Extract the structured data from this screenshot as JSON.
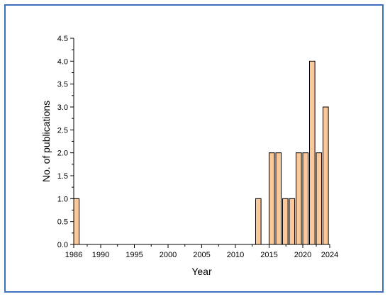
{
  "chart_data": {
    "type": "bar",
    "xlabel": "Year",
    "ylabel": "No. of publications",
    "xlim": [
      1986,
      2024
    ],
    "ylim": [
      0,
      4.5
    ],
    "x_ticks": [
      1986,
      1990,
      1995,
      2000,
      2005,
      2010,
      2015,
      2020,
      2024
    ],
    "y_ticks": [
      0.0,
      0.5,
      1.0,
      1.5,
      2.0,
      2.5,
      3.0,
      3.5,
      4.0,
      4.5
    ],
    "x_tick_labels": [
      "1986",
      "1990",
      "1995",
      "2000",
      "2005",
      "2010",
      "2015",
      "2020",
      "2024"
    ],
    "y_tick_labels": [
      "0.0",
      "0.5",
      "1.0",
      "1.5",
      "2.0",
      "2.5",
      "3.0",
      "3.5",
      "4.0",
      "4.5"
    ],
    "x": [
      1986,
      2013,
      2015,
      2016,
      2017,
      2018,
      2019,
      2020,
      2021,
      2022,
      2023
    ],
    "values": [
      1,
      1,
      2,
      2,
      1,
      1,
      2,
      2,
      4,
      2,
      3
    ],
    "bar_fill": "#f9c89b",
    "bar_stroke": "#000000",
    "frame_color": "#3f6fbf",
    "grid": false,
    "legend": "none"
  }
}
